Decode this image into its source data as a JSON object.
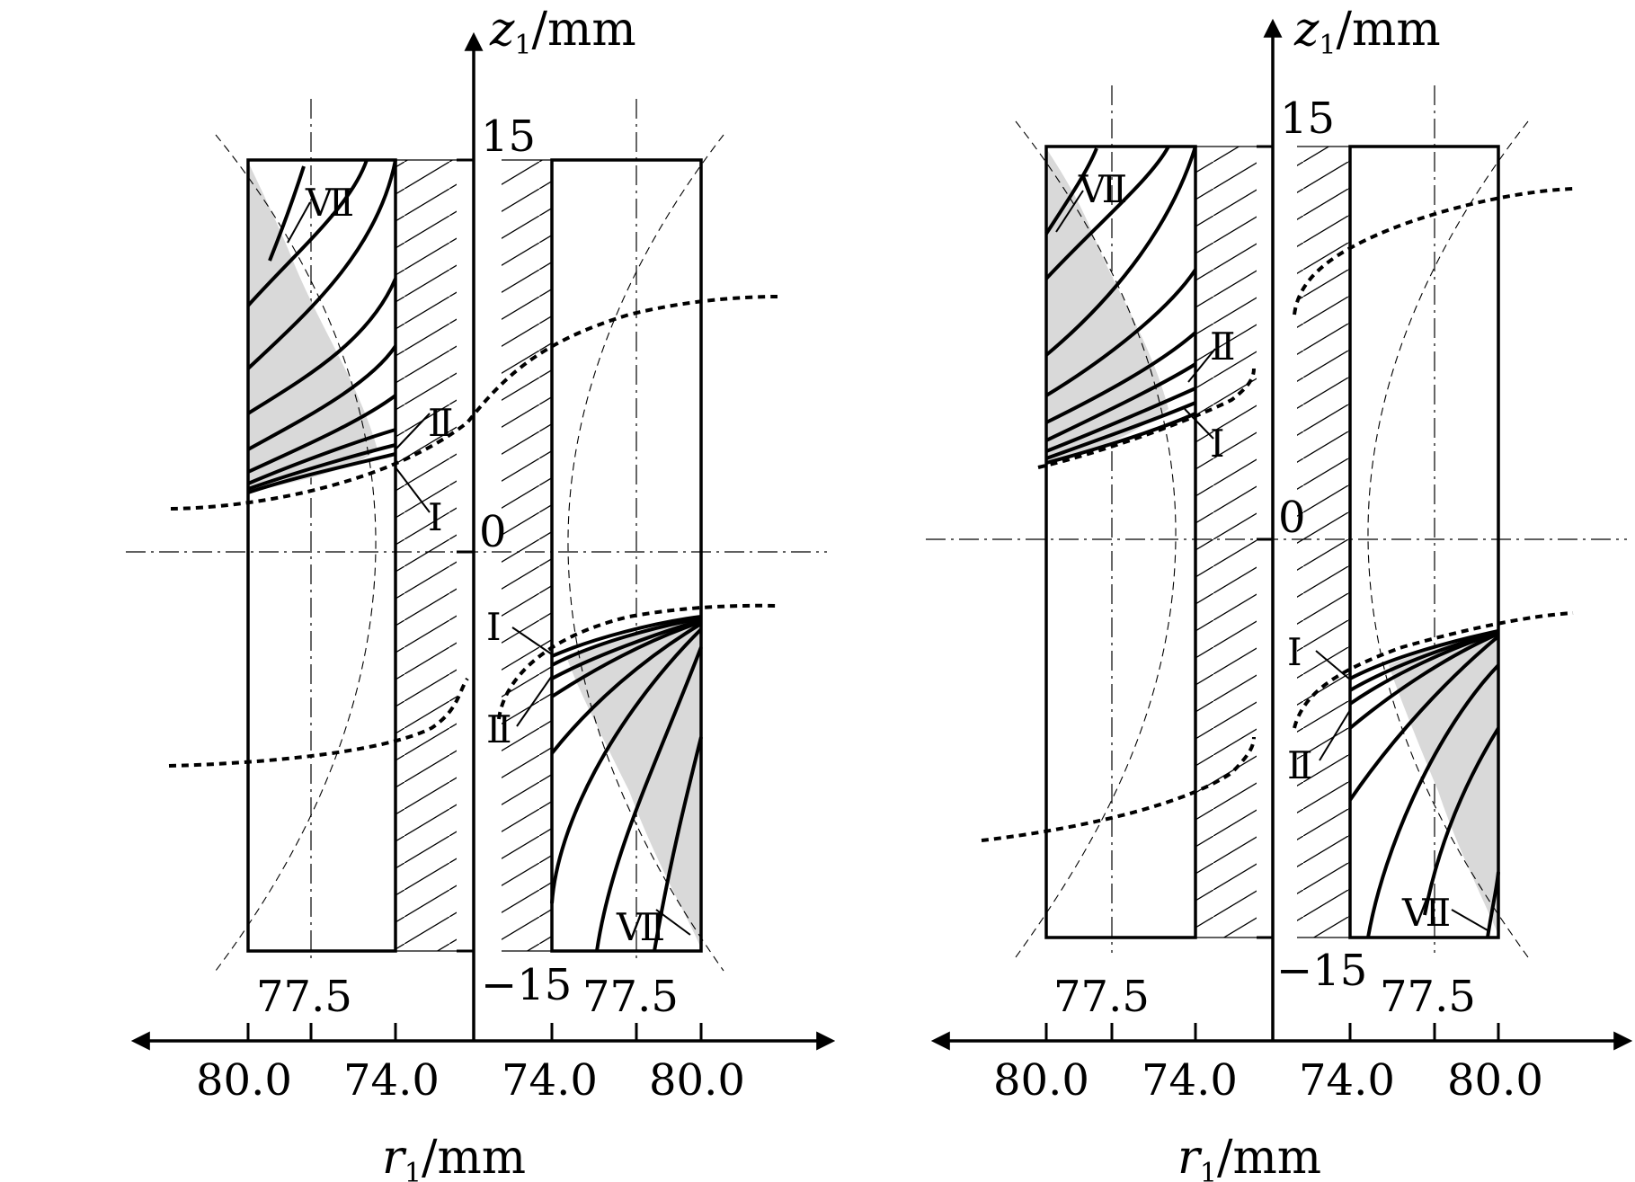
{
  "colors": {
    "ink": "#000000",
    "shade": "#d8d8d8",
    "background": "#ffffff"
  },
  "panels": [
    {
      "id": "left",
      "axis": {
        "z_label": "z",
        "z_sub": "1",
        "z_unit": "/mm",
        "r_label": "r",
        "r_sub": "1",
        "r_unit": "/mm",
        "z_top": "15",
        "z_zero": "0",
        "z_bottom": "−15"
      },
      "ticks": {
        "left_outer": "80.0",
        "left_inner": "74.0",
        "right_inner": "74.0",
        "right_outer": "80.0"
      },
      "mid_labels": {
        "left": "77.5",
        "right": "77.5"
      },
      "romans": {
        "upper_VII": "Ⅶ",
        "upper_II": "Ⅱ",
        "upper_I": "Ⅰ",
        "lower_I": "Ⅰ",
        "lower_II": "Ⅱ",
        "lower_VII": "Ⅶ"
      }
    },
    {
      "id": "right",
      "axis": {
        "z_label": "z",
        "z_sub": "1",
        "z_unit": "/mm",
        "r_label": "r",
        "r_sub": "1",
        "r_unit": "/mm",
        "z_top": "15",
        "z_zero": "0",
        "z_bottom": "−15"
      },
      "ticks": {
        "left_outer": "80.0",
        "left_inner": "74.0",
        "right_inner": "74.0",
        "right_outer": "80.0"
      },
      "mid_labels": {
        "left": "77.5",
        "right": "77.5"
      },
      "romans": {
        "upper_VII": "Ⅶ",
        "upper_II": "Ⅱ",
        "upper_I": "Ⅰ",
        "lower_I": "Ⅰ",
        "lower_II": "Ⅱ",
        "lower_VII": "Ⅶ"
      }
    }
  ]
}
